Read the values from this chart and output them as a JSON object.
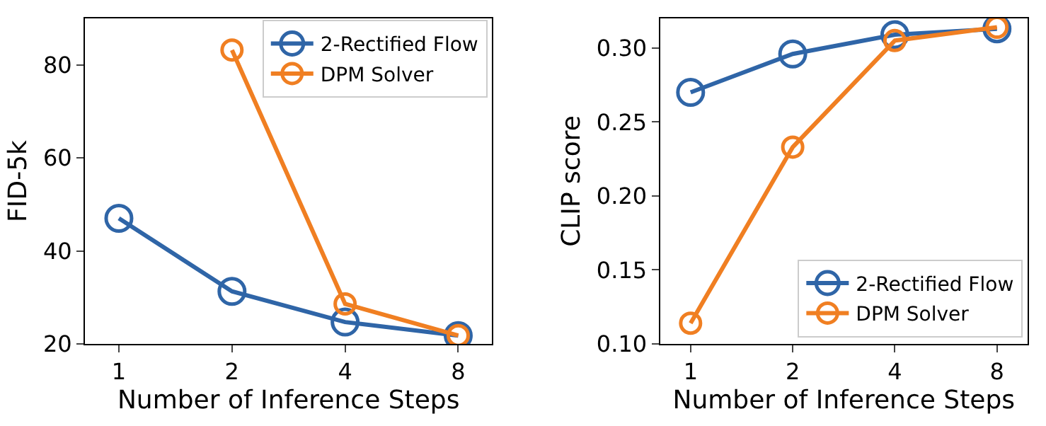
{
  "chart_data": [
    {
      "type": "line",
      "xlabel": "Number of Inference Steps",
      "ylabel": "FID-5k",
      "categories": [
        "1",
        "2",
        "4",
        "8"
      ],
      "ylim": [
        20,
        90
      ],
      "yticks": [
        20,
        40,
        60,
        80
      ],
      "marker": "circle",
      "legend": "top right",
      "series": [
        {
          "name": "2-Rectified Flow",
          "color": "#2f65a7",
          "values": [
            47.0,
            31.3,
            24.7,
            21.8
          ]
        },
        {
          "name": "DPM Solver",
          "color": "#f07f22",
          "values": [
            null,
            83.2,
            28.6,
            21.8
          ]
        }
      ]
    },
    {
      "type": "line",
      "xlabel": "Number of Inference Steps",
      "ylabel": "CLIP score",
      "categories": [
        "1",
        "2",
        "4",
        "8"
      ],
      "ylim": [
        0.1,
        0.32
      ],
      "yticks": [
        {
          "value": 0.1,
          "label": "0.10"
        },
        0.15,
        {
          "value": 0.2,
          "label": "0.20"
        },
        0.25,
        {
          "value": 0.3,
          "label": "0.30"
        }
      ],
      "marker": "circle",
      "legend": "bottom right",
      "series": [
        {
          "name": "2-Rectified Flow",
          "color": "#2f65a7",
          "values": [
            0.27,
            0.296,
            0.309,
            0.313
          ]
        },
        {
          "name": "DPM Solver",
          "color": "#f07f22",
          "values": [
            0.114,
            0.233,
            0.305,
            0.314
          ]
        }
      ]
    }
  ]
}
